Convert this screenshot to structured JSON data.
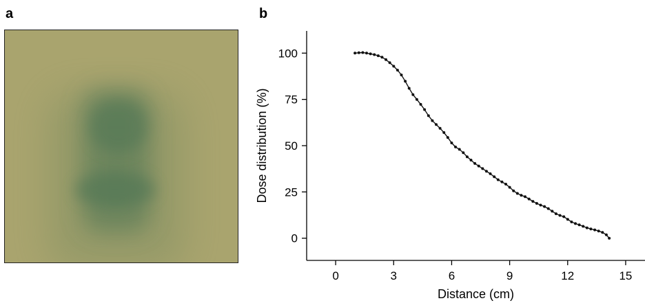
{
  "panels": {
    "a_label": "a",
    "b_label": "b"
  },
  "film_image": {
    "background_color": "#a9a46e",
    "dose_color": "#4f7654"
  },
  "chart_data": {
    "type": "scatter",
    "xlabel": "Distance (cm)",
    "ylabel": "Dose distribution (%)",
    "xlim": [
      -1.5,
      16
    ],
    "ylim": [
      -12,
      112
    ],
    "xticks": [
      0,
      3,
      6,
      9,
      12,
      15
    ],
    "yticks": [
      0,
      25,
      50,
      75,
      100
    ],
    "grid": false,
    "point_color": "#111111",
    "line_color": "#111111",
    "points": [
      [
        1.0,
        100.0
      ],
      [
        1.2,
        100.2
      ],
      [
        1.4,
        100.3
      ],
      [
        1.6,
        100.0
      ],
      [
        1.8,
        99.6
      ],
      [
        2.0,
        99.2
      ],
      [
        2.2,
        98.6
      ],
      [
        2.4,
        97.8
      ],
      [
        2.6,
        96.5
      ],
      [
        2.8,
        94.8
      ],
      [
        3.0,
        92.9
      ],
      [
        3.2,
        90.8
      ],
      [
        3.4,
        88.2
      ],
      [
        3.6,
        84.8
      ],
      [
        3.8,
        81.0
      ],
      [
        4.0,
        77.6
      ],
      [
        4.2,
        75.0
      ],
      [
        4.4,
        72.3
      ],
      [
        4.6,
        69.5
      ],
      [
        4.8,
        66.2
      ],
      [
        5.0,
        63.5
      ],
      [
        5.2,
        61.4
      ],
      [
        5.4,
        59.4
      ],
      [
        5.6,
        57.1
      ],
      [
        5.8,
        54.4
      ],
      [
        6.0,
        51.5
      ],
      [
        6.2,
        49.3
      ],
      [
        6.4,
        48.0
      ],
      [
        6.6,
        46.2
      ],
      [
        6.8,
        44.0
      ],
      [
        7.0,
        42.2
      ],
      [
        7.2,
        40.4
      ],
      [
        7.4,
        39.0
      ],
      [
        7.6,
        37.6
      ],
      [
        7.8,
        36.2
      ],
      [
        8.0,
        34.8
      ],
      [
        8.2,
        33.2
      ],
      [
        8.4,
        31.6
      ],
      [
        8.6,
        30.4
      ],
      [
        8.8,
        29.2
      ],
      [
        9.0,
        27.5
      ],
      [
        9.2,
        25.6
      ],
      [
        9.4,
        24.2
      ],
      [
        9.6,
        23.2
      ],
      [
        9.8,
        22.4
      ],
      [
        10.0,
        21.2
      ],
      [
        10.2,
        19.9
      ],
      [
        10.4,
        18.8
      ],
      [
        10.6,
        17.9
      ],
      [
        10.8,
        17.1
      ],
      [
        11.0,
        16.0
      ],
      [
        11.2,
        14.6
      ],
      [
        11.4,
        13.2
      ],
      [
        11.6,
        12.3
      ],
      [
        11.8,
        11.6
      ],
      [
        12.0,
        10.2
      ],
      [
        12.2,
        8.8
      ],
      [
        12.4,
        7.9
      ],
      [
        12.6,
        7.2
      ],
      [
        12.8,
        6.4
      ],
      [
        13.0,
        5.6
      ],
      [
        13.2,
        5.0
      ],
      [
        13.4,
        4.5
      ],
      [
        13.6,
        3.9
      ],
      [
        13.8,
        3.1
      ],
      [
        14.0,
        1.8
      ],
      [
        14.15,
        0.0
      ]
    ]
  }
}
